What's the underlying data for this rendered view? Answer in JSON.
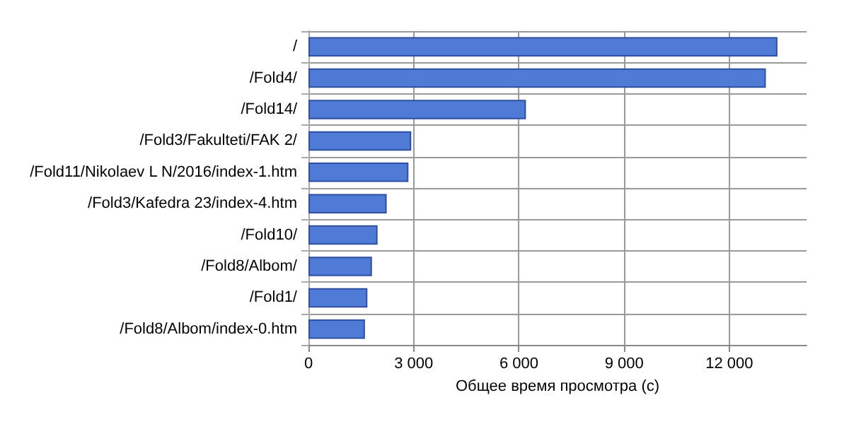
{
  "chart_data": {
    "type": "bar",
    "orientation": "horizontal",
    "xlabel": "Общее время просмотра (с)",
    "categories": [
      "/",
      "/Fold4/",
      "/Fold14/",
      "/Fold3/Fakulteti/FAK 2/",
      "/Fold11/Nikolaev L N/2016/index-1.htm",
      "/Fold3/Kafedra 23/index-4.htm",
      "/Fold10/",
      "/Fold8/Albom/",
      "/Fold1/",
      "/Fold8/Albom/index-0.htm"
    ],
    "values": [
      13370,
      13040,
      6200,
      2930,
      2850,
      2230,
      1970,
      1810,
      1680,
      1610
    ],
    "color": "#4f7ad6",
    "xlim": [
      0,
      14200
    ],
    "xticks": [
      0,
      {
        "value": 3000,
        "label": "3 000"
      },
      {
        "value": 6000,
        "label": "6 000"
      },
      {
        "value": 9000,
        "label": "9 000"
      },
      {
        "value": 12000,
        "label": "12 000"
      }
    ],
    "grid": true
  }
}
